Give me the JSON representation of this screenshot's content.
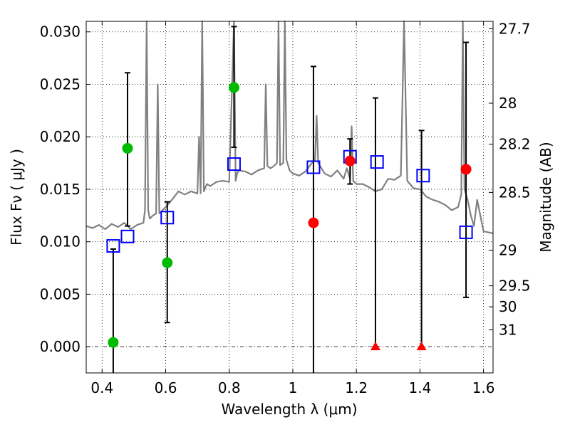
{
  "chart_data": {
    "type": "scatter",
    "title": "",
    "xlabel": "Wavelength  λ (μm)",
    "ylabel": "Flux  Fν  ( μJy )",
    "ylabel_right": "Magnitude (AB)",
    "xlim": [
      0.35,
      1.63
    ],
    "ylim": [
      -0.0025,
      0.031
    ],
    "grid": true,
    "x_ticks": [
      0.4,
      0.6,
      0.8,
      1.0,
      1.2,
      1.4,
      1.6
    ],
    "x_tick_labels": [
      "0.4",
      "0.6",
      "0.8",
      "1",
      "1.2",
      "1.4",
      "1.6"
    ],
    "y_ticks": [
      0.0,
      0.005,
      0.01,
      0.015,
      0.02,
      0.025,
      0.03
    ],
    "y_tick_labels": [
      "0.000",
      "0.005",
      "0.010",
      "0.015",
      "0.020",
      "0.025",
      "0.030"
    ],
    "right_ticks": [
      {
        "flux": 0.0303,
        "label": "27.7"
      },
      {
        "flux": 0.0232,
        "label": "28"
      },
      {
        "flux": 0.0193,
        "label": "28.2"
      },
      {
        "flux": 0.0147,
        "label": "28.5"
      },
      {
        "flux": 0.0092,
        "label": "29"
      },
      {
        "flux": 0.0058,
        "label": "29.5"
      },
      {
        "flux": 0.0038,
        "label": "30"
      },
      {
        "flux": 0.0016,
        "label": "31"
      }
    ],
    "series": [
      {
        "name": "Model SED",
        "kind": "line",
        "color": "#808080",
        "x": [
          0.35,
          0.37,
          0.39,
          0.41,
          0.43,
          0.45,
          0.47,
          0.49,
          0.51,
          0.53,
          0.535,
          0.54,
          0.545,
          0.55,
          0.56,
          0.57,
          0.575,
          0.58,
          0.585,
          0.59,
          0.6,
          0.62,
          0.64,
          0.66,
          0.68,
          0.7,
          0.705,
          0.71,
          0.715,
          0.72,
          0.725,
          0.73,
          0.74,
          0.76,
          0.78,
          0.8,
          0.815,
          0.82,
          0.825,
          0.83,
          0.85,
          0.87,
          0.89,
          0.91,
          0.915,
          0.92,
          0.93,
          0.94,
          0.95,
          0.955,
          0.96,
          0.97,
          0.975,
          0.98,
          0.99,
          1.0,
          1.02,
          1.04,
          1.06,
          1.07,
          1.075,
          1.08,
          1.1,
          1.12,
          1.14,
          1.16,
          1.17,
          1.18,
          1.185,
          1.19,
          1.2,
          1.22,
          1.24,
          1.26,
          1.28,
          1.3,
          1.32,
          1.34,
          1.35,
          1.36,
          1.38,
          1.4,
          1.42,
          1.44,
          1.46,
          1.48,
          1.5,
          1.52,
          1.53,
          1.535,
          1.54,
          1.55,
          1.56,
          1.57,
          1.58,
          1.6,
          1.63
        ],
        "y": [
          0.0115,
          0.0113,
          0.0116,
          0.0112,
          0.0117,
          0.0114,
          0.0118,
          0.0112,
          0.0116,
          0.0118,
          0.013,
          0.031,
          0.013,
          0.0122,
          0.0125,
          0.0127,
          0.025,
          0.0127,
          0.0128,
          0.013,
          0.0133,
          0.014,
          0.0148,
          0.0145,
          0.0148,
          0.0146,
          0.02,
          0.0146,
          0.031,
          0.0148,
          0.0152,
          0.0155,
          0.0153,
          0.0157,
          0.0158,
          0.0157,
          0.031,
          0.0158,
          0.0165,
          0.0168,
          0.0167,
          0.0164,
          0.0168,
          0.017,
          0.025,
          0.0172,
          0.017,
          0.0172,
          0.0175,
          0.031,
          0.0173,
          0.0175,
          0.031,
          0.0178,
          0.0168,
          0.0165,
          0.0163,
          0.0167,
          0.0175,
          0.0178,
          0.022,
          0.0175,
          0.0165,
          0.0162,
          0.0168,
          0.016,
          0.017,
          0.016,
          0.021,
          0.0158,
          0.0155,
          0.0155,
          0.0152,
          0.0148,
          0.015,
          0.016,
          0.0159,
          0.0163,
          0.031,
          0.0158,
          0.0151,
          0.015,
          0.0143,
          0.014,
          0.0138,
          0.0135,
          0.013,
          0.0133,
          0.0145,
          0.031,
          0.015,
          0.014,
          0.0125,
          0.0115,
          0.014,
          0.011,
          0.0108
        ]
      },
      {
        "name": "Model bands",
        "kind": "open-square",
        "color": "#0000ff",
        "x": [
          0.435,
          0.48,
          0.605,
          0.815,
          1.065,
          1.18,
          1.265,
          1.41,
          1.545
        ],
        "y": [
          0.0096,
          0.0105,
          0.0123,
          0.0174,
          0.0171,
          0.0181,
          0.0176,
          0.0163,
          0.0109
        ]
      },
      {
        "name": "Detections (green)",
        "kind": "filled-circle",
        "color": "#00bb00",
        "x": [
          0.435,
          0.48,
          0.605,
          0.815
        ],
        "y": [
          0.0004,
          0.0189,
          0.008,
          0.0247
        ]
      },
      {
        "name": "Detections (red)",
        "kind": "filled-circle",
        "color": "#ff0000",
        "x": [
          1.065,
          1.18,
          1.545
        ],
        "y": [
          0.0118,
          0.0177,
          0.0169
        ]
      },
      {
        "name": "Upper limits",
        "kind": "triangle",
        "color": "#ff0000",
        "x": [
          1.26,
          1.405
        ],
        "y": [
          0.0,
          0.0
        ]
      },
      {
        "name": "Error bars",
        "kind": "errorbar",
        "color": "#000000",
        "x": [
          0.435,
          0.48,
          0.605,
          0.815,
          1.065,
          1.18,
          1.26,
          1.405,
          1.545
        ],
        "low": [
          -0.0025,
          0.0115,
          0.0023,
          0.019,
          -0.0025,
          0.0155,
          0.0,
          0.0,
          0.0047
        ],
        "high": [
          0.0093,
          0.0261,
          0.0138,
          0.0305,
          0.0267,
          0.0198,
          0.0237,
          0.0206,
          0.029
        ]
      }
    ]
  }
}
